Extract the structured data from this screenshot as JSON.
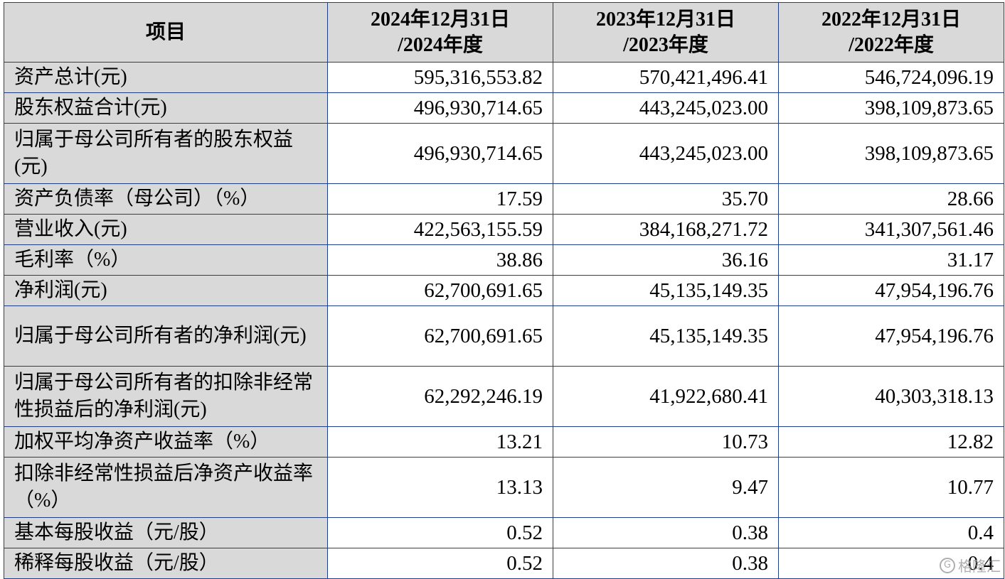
{
  "table": {
    "header": {
      "item": "项目",
      "cols": [
        {
          "line1": "2024年12月31日",
          "line2": "/2024年度"
        },
        {
          "line1": "2023年12月31日",
          "line2": "/2023年度"
        },
        {
          "line1": "2022年12月31日",
          "line2": "/2022年度"
        }
      ]
    },
    "rows": [
      {
        "label": "资产总计(元)",
        "values": [
          "595,316,553.82",
          "570,421,496.41",
          "546,724,096.19"
        ]
      },
      {
        "label": "股东权益合计(元)",
        "values": [
          "496,930,714.65",
          "443,245,023.00",
          "398,109,873.65"
        ]
      },
      {
        "label": "归属于母公司所有者的股东权益(元)",
        "values": [
          "496,930,714.65",
          "443,245,023.00",
          "398,109,873.65"
        ]
      },
      {
        "label": "资产负债率（母公司）（%）",
        "values": [
          "17.59",
          "35.70",
          "28.66"
        ]
      },
      {
        "label": "营业收入(元)",
        "values": [
          "422,563,155.59",
          "384,168,271.72",
          "341,307,561.46"
        ]
      },
      {
        "label": "毛利率（%）",
        "values": [
          "38.86",
          "36.16",
          "31.17"
        ]
      },
      {
        "label": "净利润(元)",
        "values": [
          "62,700,691.65",
          "45,135,149.35",
          "47,954,196.76"
        ]
      },
      {
        "label": "归属于母公司所有者的净利润(元)",
        "values": [
          "62,700,691.65",
          "45,135,149.35",
          "47,954,196.76"
        ]
      },
      {
        "label": "归属于母公司所有者的扣除非经常性损益后的净利润(元)",
        "values": [
          "62,292,246.19",
          "41,922,680.41",
          "40,303,318.13"
        ]
      },
      {
        "label": "加权平均净资产收益率（%）",
        "values": [
          "13.21",
          "10.73",
          "12.82"
        ]
      },
      {
        "label": "扣除非经常性损益后净资产收益率（%）",
        "values": [
          "13.13",
          "9.47",
          "10.77"
        ]
      },
      {
        "label": "基本每股收益（元/股）",
        "values": [
          "0.52",
          "0.38",
          "0.4"
        ]
      },
      {
        "label": "稀释每股收益（元/股）",
        "values": [
          "0.52",
          "0.38",
          "0.4"
        ]
      }
    ]
  },
  "watermark": {
    "icon": "G",
    "text": "格隆汇"
  }
}
